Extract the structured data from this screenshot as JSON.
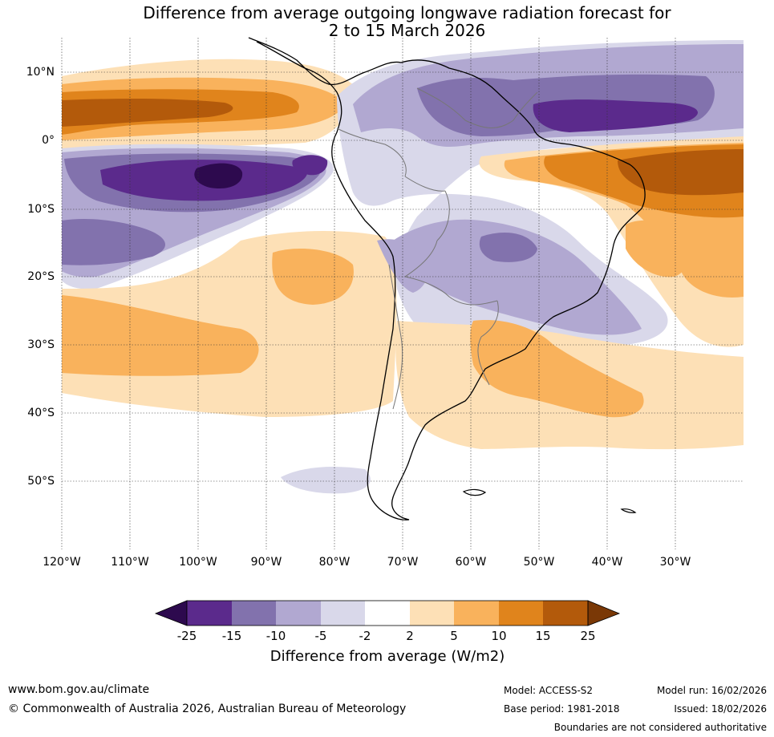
{
  "title": {
    "line1": "Difference from average outgoing longwave radiation forecast for",
    "line2": "2 to 15 March 2026"
  },
  "map": {
    "lat_labels": [
      "10°N",
      "0°",
      "10°S",
      "20°S",
      "30°S",
      "40°S",
      "50°S"
    ],
    "lon_labels": [
      "120°W",
      "110°W",
      "100°W",
      "90°W",
      "80°W",
      "70°W",
      "60°W",
      "50°W",
      "40°W",
      "30°W"
    ],
    "region": "South America and adjacent Pacific and Atlantic oceans"
  },
  "colorbar": {
    "title": "Difference from average (W/m2)",
    "ticks": [
      "-25",
      "-15",
      "-10",
      "-5",
      "-2",
      "2",
      "5",
      "10",
      "15",
      "25"
    ],
    "colors": [
      "#2d0a4e",
      "#5b2a8c",
      "#8272ad",
      "#b1a8d1",
      "#d9d8ea",
      "#ffffff",
      "#fde0b6",
      "#f9b25c",
      "#e0841c",
      "#b35a0b",
      "#7a3806"
    ]
  },
  "footer": {
    "website": "www.bom.gov.au/climate",
    "copyright": "© Commonwealth of Australia 2026, Australian Bureau of Meteorology",
    "model": "Model: ACCESS-S2",
    "base_period": "Base period: 1981-2018",
    "model_run": "Model run: 16/02/2026",
    "issued": "Issued: 18/02/2026",
    "disclaimer": "Boundaries are not considered authoritative"
  }
}
